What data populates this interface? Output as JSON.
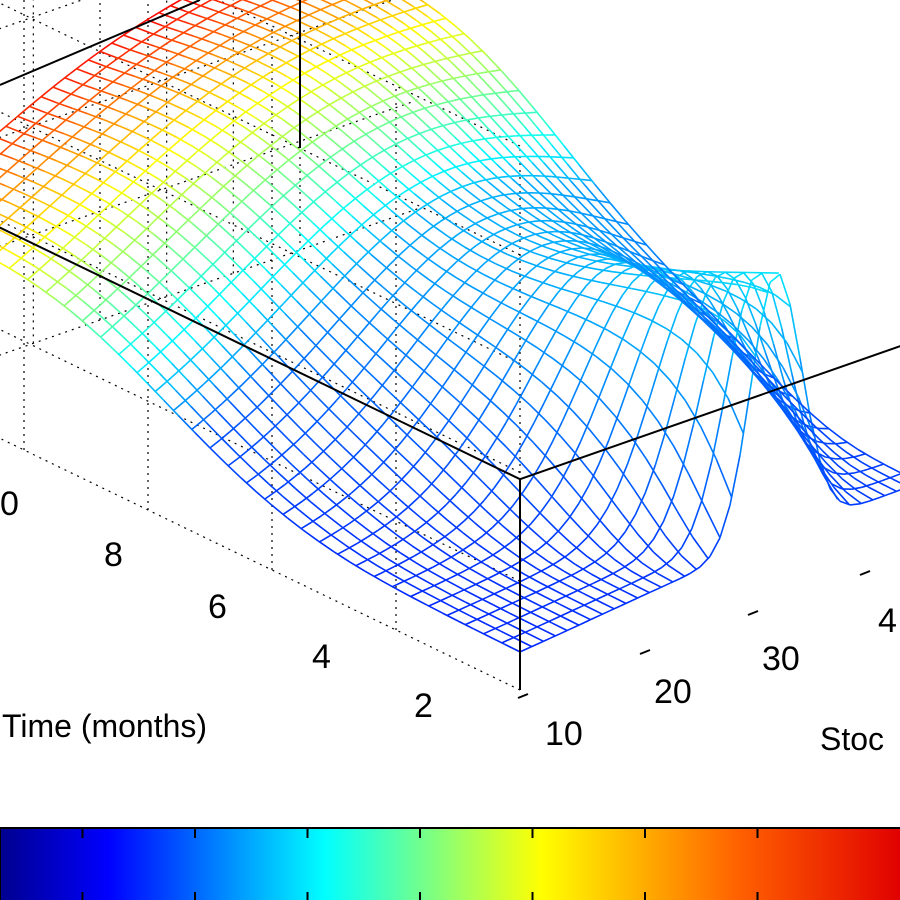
{
  "chart_data": {
    "type": "surface",
    "xlabel": "Stoc",
    "ylabel": "Time (months)",
    "x_ticks": [
      "10",
      "20",
      "30",
      "4"
    ],
    "y_ticks": [
      "0",
      "8",
      "6",
      "4",
      "2"
    ],
    "x_range": [
      10,
      45
    ],
    "y_range": [
      1,
      11
    ],
    "grid": true,
    "colormap": "jet",
    "colorbar": "bottom",
    "colorbar_ticks": 8,
    "colors": {
      "jet": [
        "#00008f",
        "#0000ff",
        "#0080ff",
        "#00ffff",
        "#80ff80",
        "#ffff00",
        "#ff8000",
        "#ff0000",
        "#800000"
      ]
    }
  }
}
